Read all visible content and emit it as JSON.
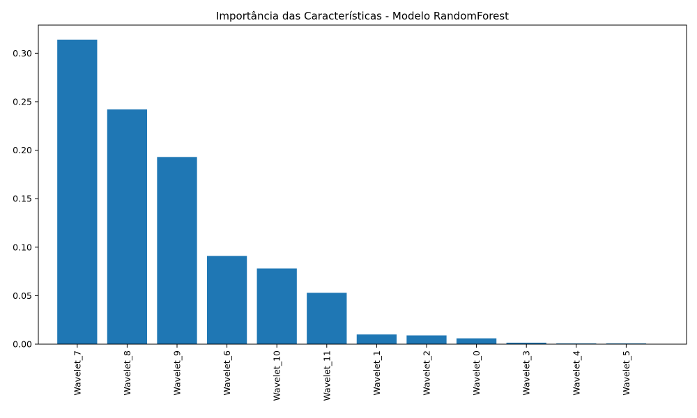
{
  "chart_data": {
    "type": "bar",
    "title": "Importância das Características - Modelo RandomForest",
    "xlabel": "",
    "ylabel": "",
    "categories": [
      "Wavelet_7",
      "Wavelet_8",
      "Wavelet_9",
      "Wavelet_6",
      "Wavelet_10",
      "Wavelet_11",
      "Wavelet_1",
      "Wavelet_2",
      "Wavelet_0",
      "Wavelet_3",
      "Wavelet_4",
      "Wavelet_5"
    ],
    "values": [
      0.314,
      0.242,
      0.193,
      0.091,
      0.078,
      0.053,
      0.01,
      0.009,
      0.006,
      0.0015,
      0.0008,
      0.0008
    ],
    "ylim": [
      0,
      0.329
    ],
    "yticks": [
      0.0,
      0.05,
      0.1,
      0.15,
      0.2,
      0.25,
      0.3
    ],
    "ytick_labels": [
      "0.00",
      "0.05",
      "0.10",
      "0.15",
      "0.20",
      "0.25",
      "0.30"
    ],
    "bar_color": "#1f77b4",
    "grid": false,
    "legend": "none"
  }
}
